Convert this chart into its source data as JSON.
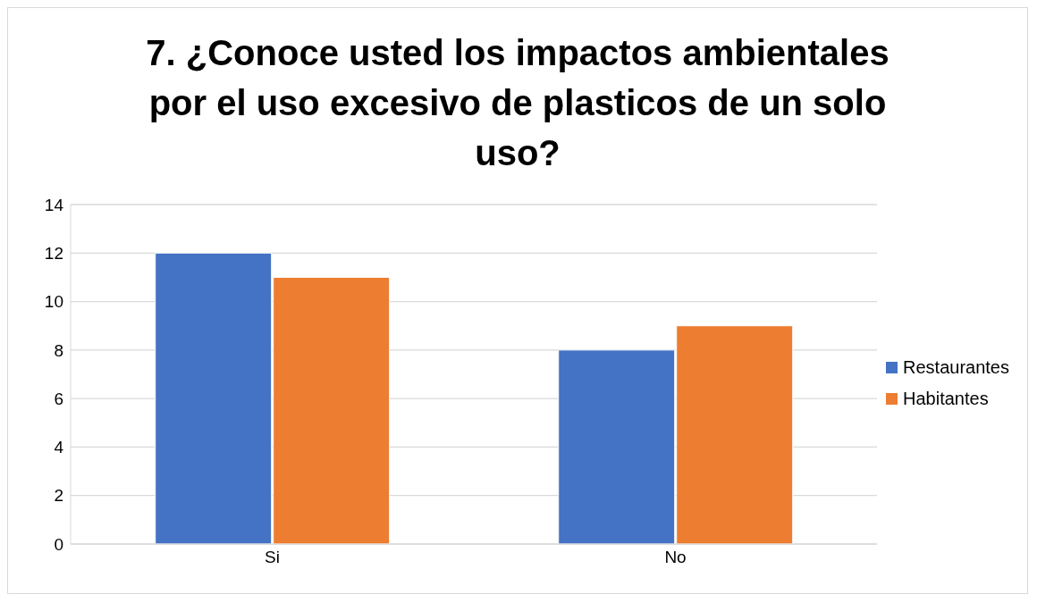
{
  "chart_data": {
    "type": "bar",
    "title": "7. ¿Conoce usted los impactos ambientales por el uso excesivo de plasticos de un solo uso?",
    "categories": [
      "Si",
      "No"
    ],
    "series": [
      {
        "name": "Restaurantes",
        "color": "#4472c4",
        "values": [
          12,
          8
        ]
      },
      {
        "name": "Habitantes",
        "color": "#ed7d31",
        "values": [
          11,
          9
        ]
      }
    ],
    "ylim": [
      0,
      14
    ],
    "yticks": [
      0,
      2,
      4,
      6,
      8,
      10,
      12,
      14
    ],
    "grid": "y",
    "legend": "right"
  }
}
